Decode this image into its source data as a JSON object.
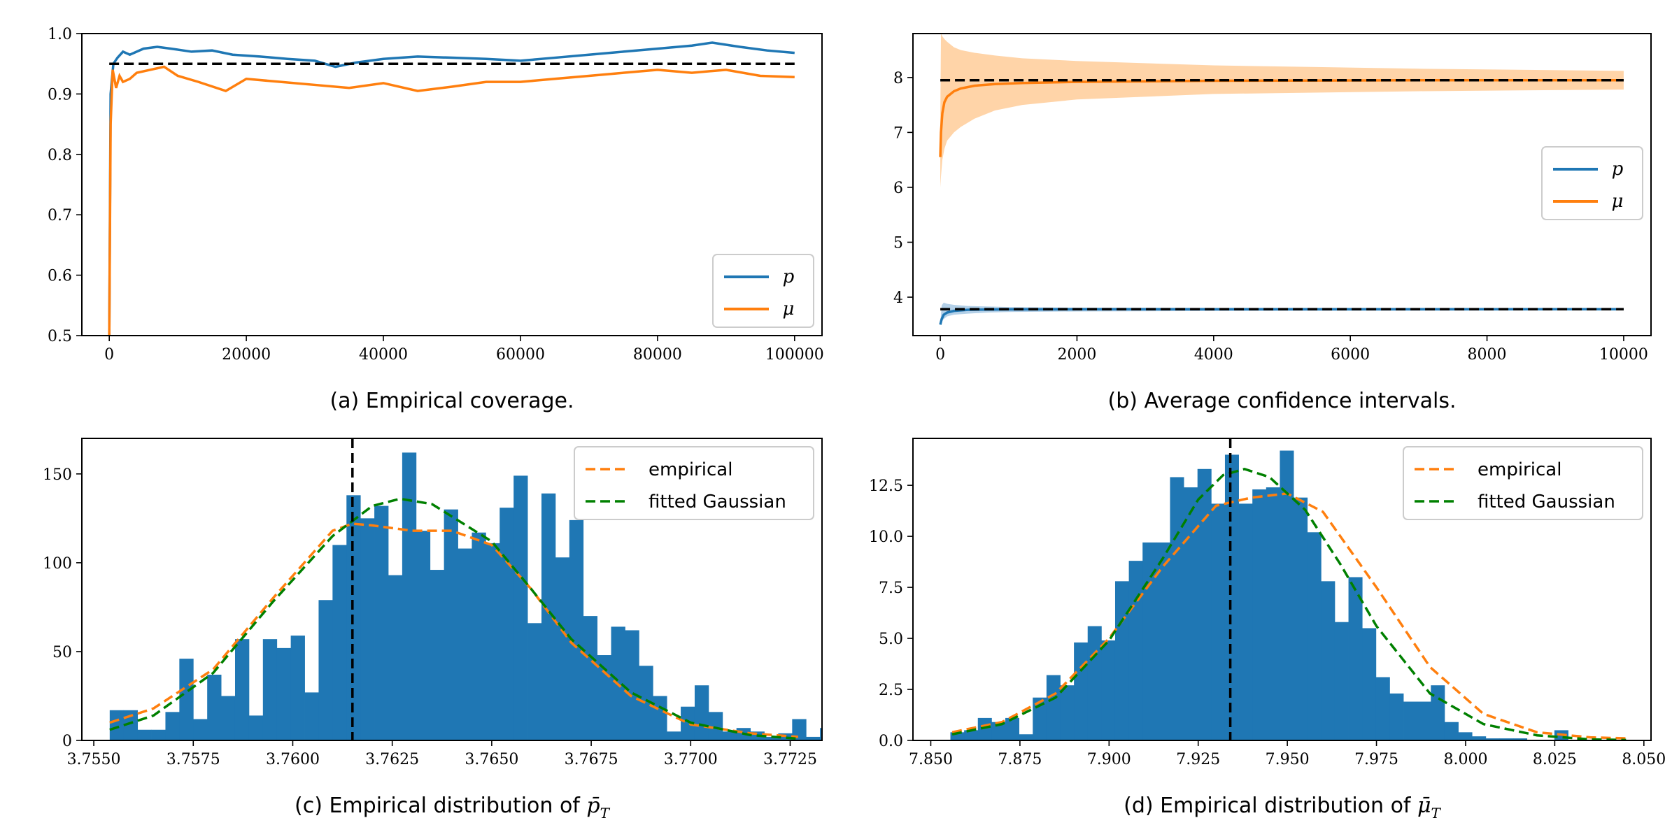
{
  "colors": {
    "blue": "#1f77b4",
    "orange": "#ff7f0e",
    "green": "#008000",
    "black": "#000000",
    "band_orange": "#ffcc99",
    "band_blue": "#a6c8e4"
  },
  "chart_data": [
    {
      "id": "a",
      "type": "line",
      "caption": "(a) Empirical coverage.",
      "xlim": [
        -4000,
        104000
      ],
      "ylim": [
        0.5,
        1.0
      ],
      "xticks": [
        0,
        20000,
        40000,
        60000,
        80000,
        100000
      ],
      "xtick_labels": [
        "0",
        "20000",
        "40000",
        "60000",
        "80000",
        "100000"
      ],
      "yticks": [
        0.5,
        0.6,
        0.7,
        0.8,
        0.9,
        1.0
      ],
      "ytick_labels": [
        "0.5",
        "0.6",
        "0.7",
        "0.8",
        "0.9",
        "1.0"
      ],
      "reference": {
        "y": 0.95,
        "x": [
          0,
          100000
        ],
        "style": "dashed"
      },
      "legend": {
        "position": "lower-right",
        "entries": [
          "p",
          "μ"
        ]
      },
      "series": [
        {
          "name": "p",
          "color": "blue",
          "x": [
            0,
            200,
            600,
            1200,
            2000,
            3000,
            5000,
            7000,
            9000,
            12000,
            15000,
            18000,
            22000,
            26000,
            30000,
            33000,
            36000,
            40000,
            45000,
            50000,
            55000,
            60000,
            65000,
            70000,
            75000,
            80000,
            85000,
            88000,
            92000,
            96000,
            100000
          ],
          "y": [
            0.5,
            0.9,
            0.95,
            0.96,
            0.97,
            0.965,
            0.975,
            0.978,
            0.975,
            0.97,
            0.972,
            0.965,
            0.962,
            0.958,
            0.955,
            0.945,
            0.952,
            0.958,
            0.962,
            0.96,
            0.958,
            0.955,
            0.96,
            0.965,
            0.97,
            0.975,
            0.98,
            0.985,
            0.978,
            0.972,
            0.968
          ]
        },
        {
          "name": "μ",
          "color": "orange",
          "x": [
            0,
            200,
            500,
            1000,
            1500,
            2000,
            3000,
            4000,
            6000,
            8000,
            10000,
            13000,
            17000,
            20000,
            25000,
            30000,
            35000,
            40000,
            45000,
            50000,
            55000,
            60000,
            65000,
            70000,
            75000,
            80000,
            85000,
            90000,
            95000,
            100000
          ],
          "y": [
            0.5,
            0.85,
            0.94,
            0.91,
            0.93,
            0.92,
            0.925,
            0.935,
            0.94,
            0.945,
            0.93,
            0.92,
            0.905,
            0.925,
            0.92,
            0.915,
            0.91,
            0.918,
            0.905,
            0.912,
            0.92,
            0.92,
            0.925,
            0.93,
            0.935,
            0.94,
            0.935,
            0.94,
            0.93,
            0.928
          ]
        }
      ]
    },
    {
      "id": "b",
      "type": "line",
      "caption": "(b) Average confidence intervals.",
      "xlim": [
        -400,
        10400
      ],
      "ylim": [
        3.3,
        8.8
      ],
      "xticks": [
        0,
        2000,
        4000,
        6000,
        8000,
        10000
      ],
      "xtick_labels": [
        "0",
        "2000",
        "4000",
        "6000",
        "8000",
        "10000"
      ],
      "yticks": [
        4,
        5,
        6,
        7,
        8
      ],
      "ytick_labels": [
        "4",
        "5",
        "6",
        "7",
        "8"
      ],
      "references": [
        {
          "y": 7.95,
          "x": [
            0,
            10000
          ],
          "style": "dashed"
        },
        {
          "y": 3.78,
          "x": [
            0,
            10000
          ],
          "style": "dashed"
        }
      ],
      "legend": {
        "position": "center-right",
        "entries": [
          "p",
          "μ"
        ]
      },
      "series": [
        {
          "name": "p",
          "color": "blue",
          "x": [
            0,
            20,
            50,
            100,
            200,
            400,
            700,
            1000,
            2000,
            5000,
            10000
          ],
          "y": [
            3.5,
            3.6,
            3.68,
            3.72,
            3.75,
            3.77,
            3.775,
            3.778,
            3.78,
            3.78,
            3.78
          ],
          "band_lower": [
            3.5,
            3.55,
            3.6,
            3.65,
            3.68,
            3.7,
            3.72,
            3.73,
            3.74,
            3.75,
            3.76
          ],
          "band_upper": [
            3.5,
            3.85,
            3.9,
            3.88,
            3.86,
            3.84,
            3.83,
            3.82,
            3.81,
            3.8,
            3.79
          ]
        },
        {
          "name": "μ",
          "color": "orange",
          "x": [
            0,
            10,
            30,
            60,
            100,
            200,
            300,
            500,
            800,
            1200,
            2000,
            4000,
            7000,
            10000
          ],
          "y": [
            6.55,
            7.0,
            7.35,
            7.55,
            7.65,
            7.75,
            7.8,
            7.85,
            7.88,
            7.9,
            7.92,
            7.94,
            7.95,
            7.95
          ],
          "band_lower": [
            6.0,
            6.2,
            6.5,
            6.7,
            6.85,
            7.0,
            7.1,
            7.25,
            7.4,
            7.5,
            7.6,
            7.7,
            7.75,
            7.78
          ],
          "band_upper": [
            7.2,
            8.8,
            8.75,
            8.7,
            8.65,
            8.55,
            8.5,
            8.45,
            8.4,
            8.35,
            8.3,
            8.22,
            8.16,
            8.12
          ]
        }
      ]
    },
    {
      "id": "c",
      "type": "bar",
      "caption_prefix": "(c) Empirical distribution of ",
      "caption_symbol": "p̄",
      "caption_sub": "T",
      "xlim": [
        3.7547,
        3.7733
      ],
      "ylim": [
        0,
        170
      ],
      "xticks": [
        3.755,
        3.7575,
        3.76,
        3.7625,
        3.765,
        3.7675,
        3.77,
        3.7725
      ],
      "xtick_labels": [
        "3.7550",
        "3.7575",
        "3.7600",
        "3.7625",
        "3.7650",
        "3.7675",
        "3.7700",
        "3.7725"
      ],
      "yticks": [
        0,
        50,
        100,
        150
      ],
      "ytick_labels": [
        "0",
        "50",
        "100",
        "150"
      ],
      "reference_x": 3.7615,
      "legend": {
        "position": "top-right",
        "entries": [
          "empirical",
          "fitted Gaussian"
        ]
      },
      "bin_start": 3.7554,
      "bin_width": 0.00035,
      "values": [
        17,
        17,
        6,
        6,
        16,
        46,
        12,
        37,
        25,
        57,
        14,
        57,
        52,
        59,
        27,
        79,
        110,
        138,
        125,
        132,
        93,
        162,
        118,
        96,
        130,
        108,
        117,
        111,
        131,
        149,
        66,
        139,
        103,
        124,
        70,
        48,
        64,
        62,
        42,
        25,
        5,
        19,
        31,
        16,
        5,
        7,
        5,
        2,
        4,
        12,
        2,
        7
      ],
      "curves": [
        {
          "name": "empirical",
          "color": "orange",
          "style": "dashed",
          "x": [
            3.7554,
            3.7565,
            3.758,
            3.7595,
            3.761,
            3.7615,
            3.762,
            3.763,
            3.764,
            3.765,
            3.766,
            3.767,
            3.7685,
            3.77,
            3.7715,
            3.7727
          ],
          "y": [
            10,
            18,
            40,
            80,
            118,
            122,
            121,
            118,
            118,
            110,
            85,
            55,
            25,
            9,
            4,
            2
          ]
        },
        {
          "name": "fitted Gaussian",
          "color": "green",
          "style": "dashed",
          "x": [
            3.7554,
            3.7565,
            3.758,
            3.7595,
            3.761,
            3.762,
            3.7627,
            3.7635,
            3.765,
            3.766,
            3.767,
            3.7685,
            3.77,
            3.7715,
            3.7727
          ],
          "y": [
            6,
            14,
            38,
            78,
            115,
            132,
            136,
            133,
            112,
            85,
            57,
            27,
            10,
            3,
            1
          ]
        }
      ]
    },
    {
      "id": "d",
      "type": "bar",
      "caption_prefix": "(d) Empirical distribution of ",
      "caption_symbol": "μ̄",
      "caption_sub": "T",
      "xlim": [
        7.845,
        8.052
      ],
      "ylim": [
        0,
        14.8
      ],
      "xticks": [
        7.85,
        7.875,
        7.9,
        7.925,
        7.95,
        7.975,
        8.0,
        8.025,
        8.05
      ],
      "xtick_labels": [
        "7.850",
        "7.875",
        "7.900",
        "7.925",
        "7.950",
        "7.975",
        "8.000",
        "8.025",
        "8.050"
      ],
      "yticks": [
        0,
        2.5,
        5,
        7.5,
        10,
        12.5
      ],
      "ytick_labels": [
        "0.0",
        "2.5",
        "5.0",
        "7.5",
        "10.0",
        "12.5"
      ],
      "reference_x": 7.934,
      "legend": {
        "position": "top-right",
        "entries": [
          "empirical",
          "fitted Gaussian"
        ]
      },
      "bin_start": 7.8555,
      "bin_width": 0.00385,
      "values": [
        0.4,
        0.5,
        1.1,
        0.9,
        1.1,
        0.3,
        2.1,
        3.2,
        2.7,
        4.8,
        5.6,
        4.9,
        7.8,
        8.8,
        9.7,
        9.7,
        12.9,
        12.4,
        13.3,
        11.6,
        14.0,
        11.6,
        12.3,
        12.4,
        14.2,
        11.9,
        10.2,
        7.8,
        5.8,
        8.0,
        5.5,
        3.1,
        2.3,
        1.9,
        1.9,
        2.7,
        0.9,
        0.4,
        0.2,
        0.1,
        0.1,
        0.1,
        0.0,
        0.0,
        0.5
      ],
      "curves": [
        {
          "name": "empirical",
          "color": "orange",
          "style": "dashed",
          "x": [
            7.856,
            7.87,
            7.885,
            7.9,
            7.915,
            7.93,
            7.94,
            7.95,
            7.96,
            7.975,
            7.99,
            8.005,
            8.02,
            8.035,
            8.045
          ],
          "y": [
            0.4,
            0.9,
            2.3,
            5.0,
            8.5,
            11.5,
            11.9,
            12.1,
            11.2,
            7.5,
            3.6,
            1.3,
            0.4,
            0.15,
            0.1
          ]
        },
        {
          "name": "fitted Gaussian",
          "color": "green",
          "style": "dashed",
          "x": [
            7.856,
            7.87,
            7.885,
            7.9,
            7.915,
            7.925,
            7.932,
            7.938,
            7.945,
            7.955,
            7.965,
            7.975,
            7.99,
            8.005,
            8.02,
            8.035,
            8.045
          ],
          "y": [
            0.3,
            0.8,
            2.1,
            4.9,
            8.9,
            11.8,
            13.0,
            13.3,
            12.9,
            11.3,
            8.6,
            5.6,
            2.3,
            0.8,
            0.25,
            0.05,
            0.02
          ]
        }
      ]
    }
  ]
}
